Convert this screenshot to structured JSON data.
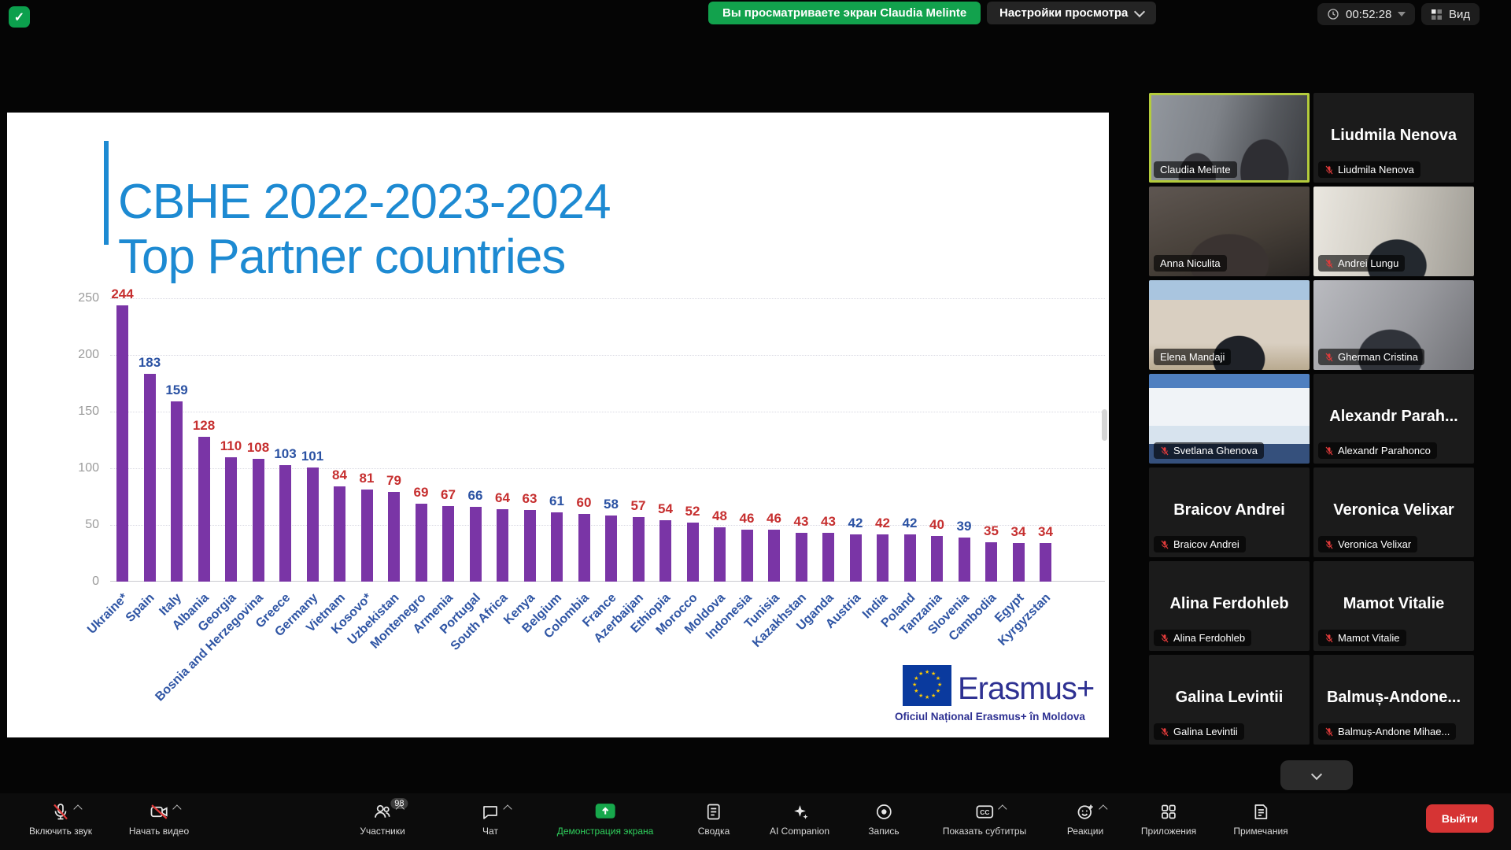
{
  "top_bar": {
    "shield_check": "✓",
    "sharing_banner": "Вы просматриваете экран Claudia Melinte",
    "view_settings": "Настройки просмотра",
    "timer": "00:52:28",
    "view_button": "Вид"
  },
  "slide": {
    "title_line1": "CBHE 2022-2023-2024",
    "title_line2": "Top Partner countries",
    "logo_brand": "Erasmus+",
    "logo_caption": "Oficiul Național Erasmus+ în Moldova"
  },
  "chart_data": {
    "type": "bar",
    "title": "CBHE 2022-2023-2024 Top Partner countries",
    "categories": [
      "Ukraine*",
      "Spain",
      "Italy",
      "Albania",
      "Georgia",
      "Bosnia and Herzegovina",
      "Greece",
      "Germany",
      "Vietnam",
      "Kosovo*",
      "Uzbekistan",
      "Montenegro",
      "Armenia",
      "Portugal",
      "South Africa",
      "Kenya",
      "Belgium",
      "Colombia",
      "France",
      "Azerbaijan",
      "Ethiopia",
      "Morocco",
      "Moldova",
      "Indonesia",
      "Tunisia",
      "Kazakhstan",
      "Uganda",
      "Austria",
      "India",
      "Poland",
      "Tanzania",
      "Slovenia",
      "Cambodia",
      "Egypt",
      "Kyrgyzstan"
    ],
    "values": [
      244,
      183,
      159,
      128,
      110,
      108,
      103,
      101,
      84,
      81,
      79,
      69,
      67,
      66,
      64,
      63,
      61,
      60,
      58,
      57,
      54,
      52,
      48,
      46,
      46,
      43,
      43,
      42,
      42,
      42,
      40,
      39,
      35,
      34,
      34
    ],
    "label_colors": [
      "red",
      "blue",
      "blue",
      "red",
      "red",
      "red",
      "blue",
      "blue",
      "red",
      "red",
      "red",
      "red",
      "red",
      "blue",
      "red",
      "red",
      "blue",
      "red",
      "blue",
      "red",
      "red",
      "red",
      "red",
      "red",
      "red",
      "red",
      "red",
      "blue",
      "red",
      "blue",
      "red",
      "blue",
      "red",
      "red",
      "red"
    ],
    "bar_color": "#7a35a6",
    "value_color_red": "#c62f2f",
    "value_color_blue": "#2b52a3",
    "xlabel_color": "#2f55a4",
    "ylim": [
      0,
      250
    ],
    "yticks": [
      0,
      50,
      100,
      150,
      200,
      250
    ],
    "grid": true,
    "legend": null
  },
  "participants": [
    {
      "label": "Claudia Melinte",
      "center": null,
      "muted": false,
      "style": "v-claudia",
      "active": true
    },
    {
      "label": "Liudmila Nenova",
      "center": "Liudmila Nenova",
      "muted": true,
      "style": "",
      "active": false
    },
    {
      "label": "Anna Niculita",
      "center": null,
      "muted": false,
      "style": "v-anna",
      "active": false
    },
    {
      "label": "Andrei Lungu",
      "center": null,
      "muted": true,
      "style": "v-andrei",
      "active": false
    },
    {
      "label": "Elena Mandaji",
      "center": null,
      "muted": false,
      "style": "v-elena",
      "active": false
    },
    {
      "label": "Gherman Cristina",
      "center": null,
      "muted": true,
      "style": "v-gherman",
      "active": false
    },
    {
      "label": "Svetlana Ghenova",
      "center": null,
      "muted": true,
      "style": "v-svetlana",
      "active": false
    },
    {
      "label": "Alexandr Parahonco",
      "center": "Alexandr  Parah...",
      "muted": true,
      "style": "",
      "active": false
    },
    {
      "label": "Braicov Andrei",
      "center": "Braicov Andrei",
      "muted": true,
      "style": "",
      "active": false
    },
    {
      "label": "Veronica Velixar",
      "center": "Veronica Velixar",
      "muted": true,
      "style": "",
      "active": false
    },
    {
      "label": "Alina Ferdohleb",
      "center": "Alina Ferdohleb",
      "muted": true,
      "style": "",
      "active": false
    },
    {
      "label": "Mamot Vitalie",
      "center": "Mamot Vitalie",
      "muted": true,
      "style": "",
      "active": false
    },
    {
      "label": "Galina Levintii",
      "center": "Galina Levintii",
      "muted": true,
      "style": "",
      "active": false
    },
    {
      "label": "Balmuș-Andone Mihae...",
      "center": "Balmuș-Andone...",
      "muted": true,
      "style": "",
      "active": false
    }
  ],
  "toolbar": {
    "items": [
      {
        "label": "Включить звук",
        "icon": "mic-off",
        "chevron": true
      },
      {
        "label": "Начать видео",
        "icon": "camera-off",
        "chevron": true
      },
      {
        "label": "Участники",
        "icon": "participants",
        "chevron": true,
        "badge": "98"
      },
      {
        "label": "Чат",
        "icon": "chat",
        "chevron": true
      },
      {
        "label": "Демонстрация экрана",
        "icon": "share-screen",
        "active": true
      },
      {
        "label": "Сводка",
        "icon": "summary"
      },
      {
        "label": "AI Companion",
        "icon": "ai-sparkle"
      },
      {
        "label": "Запись",
        "icon": "record"
      },
      {
        "label": "Показать субтитры",
        "icon": "captions",
        "chevron": true
      },
      {
        "label": "Реакции",
        "icon": "reactions",
        "chevron": true
      },
      {
        "label": "Приложения",
        "icon": "apps"
      },
      {
        "label": "Примечания",
        "icon": "notes"
      }
    ],
    "leave_button": "Выйти"
  }
}
